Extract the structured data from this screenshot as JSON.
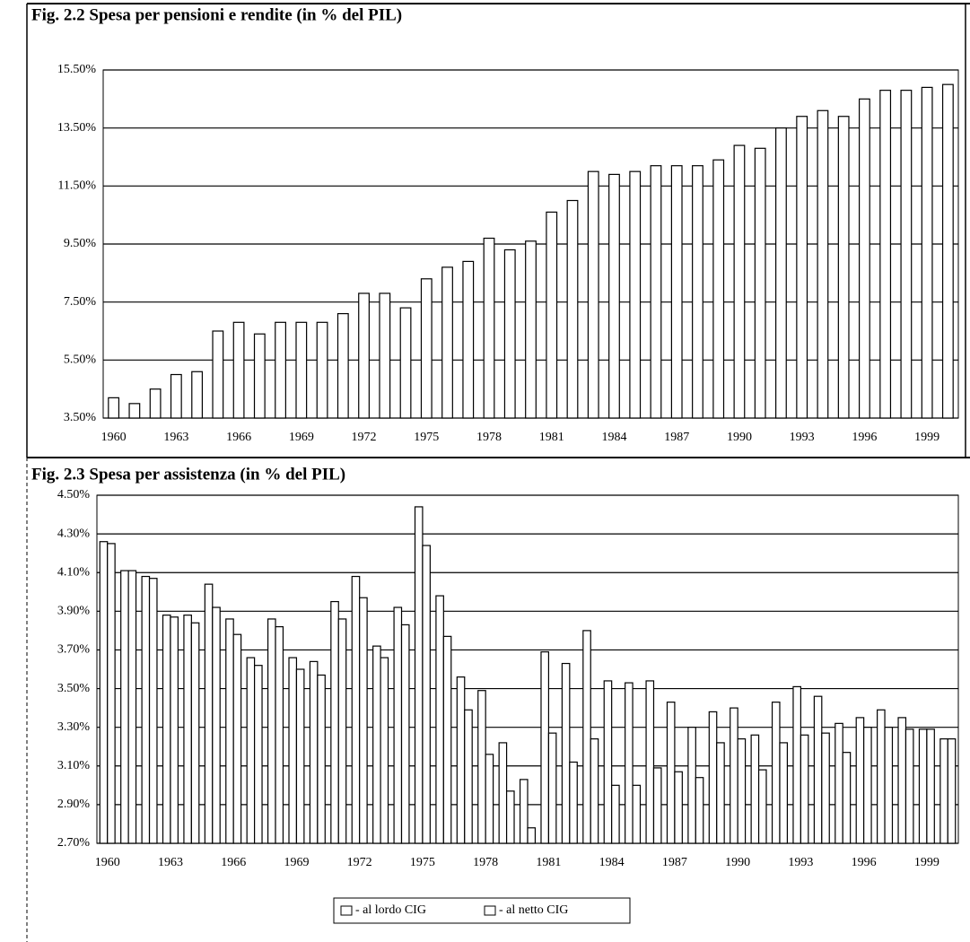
{
  "charts": [
    {
      "type": "bar",
      "title": "Fig. 2.2   Spesa per pensioni e rendite (in % del PIL)",
      "categories": [
        "1960",
        null,
        null,
        "1963",
        null,
        null,
        "1966",
        null,
        null,
        "1969",
        null,
        null,
        "1972",
        null,
        null,
        "1975",
        null,
        null,
        "1978",
        null,
        null,
        "1981",
        null,
        null,
        "1984",
        null,
        null,
        "1987",
        null,
        null,
        "1990",
        null,
        null,
        "1993",
        null,
        null,
        "1996",
        null,
        null,
        "1999",
        null
      ],
      "values": [
        4.2,
        4.0,
        4.5,
        5.0,
        5.1,
        6.5,
        6.8,
        6.4,
        6.8,
        6.8,
        6.8,
        7.1,
        7.8,
        7.8,
        7.3,
        8.3,
        8.7,
        8.9,
        9.7,
        9.3,
        9.6,
        10.6,
        11.0,
        12.0,
        11.9,
        12.0,
        12.2,
        12.2,
        12.2,
        12.4,
        12.9,
        12.8,
        13.5,
        13.9,
        14.1,
        13.9,
        14.5,
        14.8,
        14.8,
        14.9,
        15.0
      ],
      "color": "#ffffff",
      "ylim": [
        3.5,
        15.5
      ],
      "yticks": [
        {
          "value": 3.5,
          "label": "3.50%"
        },
        {
          "value": 5.5,
          "label": "5.50%"
        },
        {
          "value": 7.5,
          "label": "7.50%"
        },
        {
          "value": 9.5,
          "label": "9.50%"
        },
        {
          "value": 11.5,
          "label": "11.50%"
        },
        {
          "value": 13.5,
          "label": "13.50%"
        },
        {
          "value": 15.5,
          "label": "15.50%"
        }
      ],
      "grid": true
    },
    {
      "type": "bar",
      "title": "Fig. 2.3   Spesa per assistenza (in % del PIL)",
      "categories": [
        "1960",
        null,
        null,
        "1963",
        null,
        null,
        "1966",
        null,
        null,
        "1969",
        null,
        null,
        "1972",
        null,
        null,
        "1975",
        null,
        null,
        "1978",
        null,
        null,
        "1981",
        null,
        null,
        "1984",
        null,
        null,
        "1987",
        null,
        null,
        "1990",
        null,
        null,
        "1993",
        null,
        null,
        "1996",
        null,
        null,
        "1999",
        null
      ],
      "series": [
        {
          "name": "- al lordo CIG",
          "color": "#ffffff",
          "values": [
            4.26,
            4.11,
            4.08,
            3.88,
            3.88,
            4.04,
            3.86,
            3.66,
            3.86,
            3.66,
            3.64,
            3.95,
            4.08,
            3.72,
            3.92,
            4.44,
            3.98,
            3.56,
            3.49,
            3.22,
            3.03,
            3.69,
            3.63,
            3.8,
            3.54,
            3.53,
            3.54,
            3.43,
            3.3,
            3.38,
            3.4,
            3.26,
            3.43,
            3.51,
            3.46,
            3.32,
            3.35,
            3.39,
            3.35,
            3.29,
            3.24
          ]
        },
        {
          "name": "- al netto CIG",
          "color": "#ffffff",
          "values": [
            4.25,
            4.11,
            4.07,
            3.87,
            3.84,
            3.92,
            3.78,
            3.62,
            3.82,
            3.6,
            3.57,
            3.86,
            3.97,
            3.66,
            3.83,
            4.24,
            3.77,
            3.39,
            3.16,
            2.97,
            2.78,
            3.27,
            3.12,
            3.24,
            3.0,
            3.0,
            3.09,
            3.07,
            3.04,
            3.22,
            3.24,
            3.08,
            3.22,
            3.26,
            3.27,
            3.17,
            3.3,
            3.3,
            3.29,
            3.29,
            3.24
          ]
        }
      ],
      "ylim": [
        2.7,
        4.5
      ],
      "yticks": [
        {
          "value": 2.7,
          "label": "2.70%"
        },
        {
          "value": 2.9,
          "label": "2.90%"
        },
        {
          "value": 3.1,
          "label": "3.10%"
        },
        {
          "value": 3.3,
          "label": "3.30%"
        },
        {
          "value": 3.5,
          "label": "3.50%"
        },
        {
          "value": 3.7,
          "label": "3.70%"
        },
        {
          "value": 3.9,
          "label": "3.90%"
        },
        {
          "value": 4.1,
          "label": "4.10%"
        },
        {
          "value": 4.3,
          "label": "4.30%"
        },
        {
          "value": 4.5,
          "label": "4.50%"
        }
      ],
      "grid": true,
      "legend": "bottom"
    }
  ]
}
